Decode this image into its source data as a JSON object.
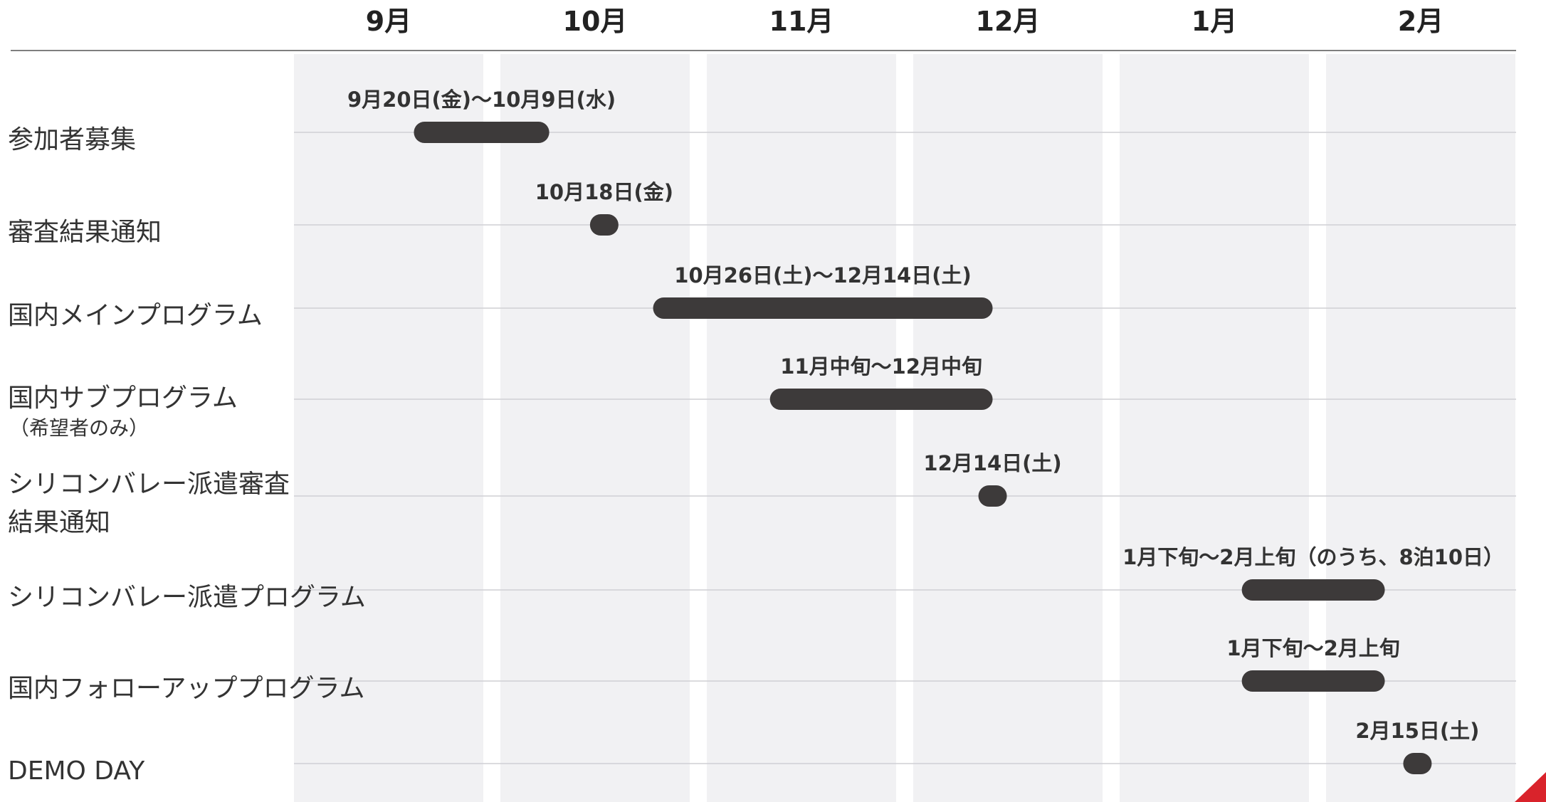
{
  "colors": {
    "column_band": "#f1f1f3",
    "row_line": "#cfcfd4",
    "bar": "#3d3a3a",
    "corner_accent": "#d9232b"
  },
  "chart_data": {
    "type": "gantt",
    "title": "",
    "months": [
      "9月",
      "10月",
      "11月",
      "12月",
      "1月",
      "2月"
    ],
    "tasks": [
      {
        "label": "参加者募集",
        "bar_label": "9月20日(金)〜10月9日(水)",
        "start": "2019-09-20",
        "end": "2019-10-09"
      },
      {
        "label": "審査結果通知",
        "bar_label": "10月18日(金)",
        "start": "2019-10-18",
        "end": "2019-10-18"
      },
      {
        "label": "国内メインプログラム",
        "bar_label": "10月26日(土)〜12月14日(土)",
        "start": "2019-10-26",
        "end": "2019-12-14"
      },
      {
        "label": "国内サブプログラム",
        "sublabel": "（希望者のみ）",
        "bar_label": "11月中旬〜12月中旬",
        "start": "2019-11-11",
        "end": "2019-12-14"
      },
      {
        "label": "シリコンバレー派遣審査",
        "label_line2": "結果通知",
        "bar_label": "12月14日(土)",
        "start": "2019-12-14",
        "end": "2019-12-14"
      },
      {
        "label": "シリコンバレー派遣プログラム",
        "bar_label": "1月下旬〜2月上旬（のうち、8泊10日）",
        "start": "2020-01-21",
        "end": "2020-02-10"
      },
      {
        "label": "国内フォローアッププログラム",
        "bar_label": "1月下旬〜2月上旬",
        "start": "2020-01-21",
        "end": "2020-02-10"
      },
      {
        "label": "DEMO DAY",
        "bar_label": "2月15日(土)",
        "start": "2020-02-15",
        "end": "2020-02-15"
      }
    ]
  }
}
